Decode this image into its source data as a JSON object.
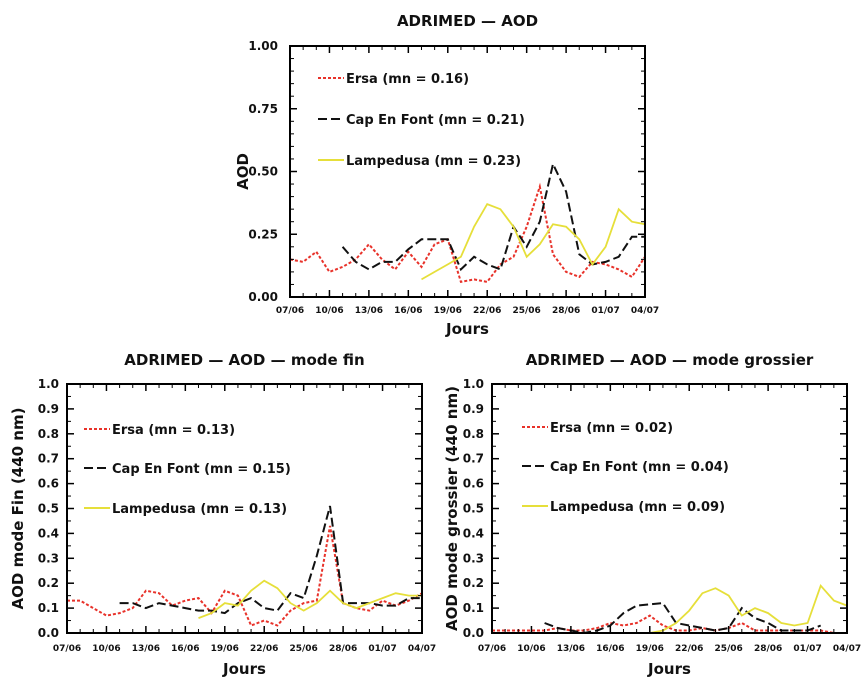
{
  "colors": {
    "ersa": "#e8322a",
    "cap": "#111111",
    "lampedusa": "#e6df3a"
  },
  "chart_data": [
    {
      "type": "line",
      "title": "ADRIMED — AOD",
      "xlabel": "Jours",
      "ylabel": "AOD",
      "ylim": [
        0,
        1
      ],
      "xlim": [
        0,
        27
      ],
      "yticks": [
        0,
        0.25,
        0.5,
        0.75,
        1
      ],
      "ytick_labels": [
        "0.00",
        "0.25",
        "0.50",
        "0.75",
        "1.00"
      ],
      "xtick_labels": [
        "07/06",
        "10/06",
        "13/06",
        "16/06",
        "19/06",
        "22/06",
        "25/06",
        "28/06",
        "01/07",
        "04/07"
      ],
      "legend": "top-left",
      "series": [
        {
          "name": "Ersa (mn = 0.16)",
          "color": "#e8322a",
          "style": "dotted",
          "x": [
            0,
            1,
            2,
            3,
            4,
            5,
            6,
            7,
            8,
            9,
            10,
            11,
            12,
            13,
            14,
            15,
            16,
            17,
            18,
            19,
            20,
            21,
            22,
            23,
            24,
            25,
            26,
            27
          ],
          "y": [
            0.15,
            0.14,
            0.18,
            0.1,
            0.12,
            0.15,
            0.21,
            0.15,
            0.11,
            0.18,
            0.12,
            0.21,
            0.23,
            0.06,
            0.07,
            0.06,
            0.13,
            0.16,
            0.28,
            0.44,
            0.17,
            0.1,
            0.08,
            0.14,
            0.13,
            0.11,
            0.08,
            0.16
          ]
        },
        {
          "name": "Cap En Font (mn = 0.21)",
          "color": "#111111",
          "style": "dashed",
          "x": [
            4,
            5,
            6,
            7,
            8,
            9,
            10,
            11,
            12,
            13,
            14,
            15,
            16,
            17,
            18,
            19,
            20,
            21,
            22,
            23,
            24,
            25,
            26,
            27
          ],
          "y": [
            0.2,
            0.14,
            0.11,
            0.14,
            0.14,
            0.19,
            0.23,
            0.23,
            0.23,
            0.11,
            0.16,
            0.13,
            0.11,
            0.28,
            0.2,
            0.3,
            0.53,
            0.42,
            0.17,
            0.13,
            0.14,
            0.16,
            0.24,
            0.24
          ]
        },
        {
          "name": "Lampedusa (mn = 0.23)",
          "color": "#e6df3a",
          "style": "solid",
          "x": [
            10,
            11,
            12,
            13,
            14,
            15,
            16,
            17,
            18,
            19,
            20,
            21,
            22,
            23,
            24,
            25,
            26,
            27
          ],
          "y": [
            0.07,
            0.1,
            0.13,
            0.16,
            0.28,
            0.37,
            0.35,
            0.28,
            0.16,
            0.21,
            0.29,
            0.28,
            0.23,
            0.13,
            0.2,
            0.35,
            0.3,
            0.29
          ]
        }
      ]
    },
    {
      "type": "line",
      "title": "ADRIMED — AOD — mode fin",
      "xlabel": "Jours",
      "ylabel": "AOD mode Fin (440 nm)",
      "ylim": [
        0,
        1
      ],
      "xlim": [
        0,
        27
      ],
      "yticks": [
        0,
        0.1,
        0.2,
        0.3,
        0.4,
        0.5,
        0.6,
        0.7,
        0.8,
        0.9,
        1.0
      ],
      "ytick_labels": [
        "0.0",
        "0.1",
        "0.2",
        "0.3",
        "0.4",
        "0.5",
        "0.6",
        "0.7",
        "0.8",
        "0.9",
        "1.0"
      ],
      "xtick_labels": [
        "07/06",
        "10/06",
        "13/06",
        "16/06",
        "19/06",
        "22/06",
        "25/06",
        "28/06",
        "01/07",
        "04/07"
      ],
      "legend": "top-left",
      "series": [
        {
          "name": "Ersa (mn = 0.13)",
          "color": "#e8322a",
          "style": "dotted",
          "x": [
            0,
            1,
            3,
            4,
            5,
            6,
            7,
            8,
            9,
            10,
            11,
            12,
            13,
            14,
            15,
            16,
            17,
            18,
            19,
            20,
            21,
            22,
            23,
            24,
            25,
            26,
            27
          ],
          "y": [
            0.13,
            0.13,
            0.07,
            0.08,
            0.1,
            0.17,
            0.16,
            0.11,
            0.13,
            0.14,
            0.08,
            0.17,
            0.15,
            0.03,
            0.05,
            0.03,
            0.09,
            0.12,
            0.13,
            0.43,
            0.12,
            0.1,
            0.09,
            0.13,
            0.11,
            0.13,
            0.16
          ]
        },
        {
          "name": "Cap En Font (mn = 0.15)",
          "color": "#111111",
          "style": "dashed",
          "x": [
            4,
            5,
            6,
            7,
            8,
            9,
            10,
            11,
            12,
            13,
            14,
            15,
            16,
            17,
            18,
            19,
            20,
            21,
            22,
            23,
            24,
            25,
            26,
            27
          ],
          "y": [
            0.12,
            0.12,
            0.1,
            0.12,
            0.11,
            0.1,
            0.09,
            0.09,
            0.08,
            0.12,
            0.14,
            0.1,
            0.09,
            0.16,
            0.14,
            0.31,
            0.51,
            0.12,
            0.12,
            0.12,
            0.11,
            0.11,
            0.14,
            0.14
          ]
        },
        {
          "name": "Lampedusa (mn = 0.13)",
          "color": "#e6df3a",
          "style": "solid",
          "x": [
            10,
            11,
            12,
            13,
            14,
            15,
            16,
            17,
            18,
            19,
            20,
            21,
            22,
            23,
            24,
            25,
            26,
            27
          ],
          "y": [
            0.06,
            0.08,
            0.12,
            0.11,
            0.17,
            0.21,
            0.18,
            0.12,
            0.09,
            0.12,
            0.17,
            0.12,
            0.1,
            0.12,
            0.14,
            0.16,
            0.15,
            0.15
          ]
        }
      ]
    },
    {
      "type": "line",
      "title": "ADRIMED — AOD — mode grossier",
      "xlabel": "Jours",
      "ylabel": "AOD mode grossier (440 nm)",
      "ylim": [
        0,
        1
      ],
      "xlim": [
        0,
        27
      ],
      "yticks": [
        0,
        0.1,
        0.2,
        0.3,
        0.4,
        0.5,
        0.6,
        0.7,
        0.8,
        0.9,
        1.0
      ],
      "ytick_labels": [
        "0.0",
        "0.1",
        "0.2",
        "0.3",
        "0.4",
        "0.5",
        "0.6",
        "0.7",
        "0.8",
        "0.9",
        "1.0"
      ],
      "xtick_labels": [
        "07/06",
        "10/06",
        "13/06",
        "16/06",
        "19/06",
        "22/06",
        "25/06",
        "28/06",
        "01/07",
        "04/07"
      ],
      "legend": "top-left",
      "series": [
        {
          "name": "Ersa (mn = 0.02)",
          "color": "#e8322a",
          "style": "dotted",
          "x": [
            0,
            1,
            3,
            4,
            5,
            6,
            7,
            8,
            9,
            10,
            11,
            12,
            13,
            14,
            15,
            16,
            17,
            18,
            19,
            20,
            21,
            22,
            23,
            24,
            25,
            26,
            27
          ],
          "y": [
            0.01,
            0.01,
            0.01,
            0.01,
            0.02,
            0.01,
            0.01,
            0.02,
            0.04,
            0.03,
            0.04,
            0.07,
            0.03,
            0.01,
            0.01,
            0.02,
            0.01,
            0.02,
            0.04,
            0.01,
            0.01,
            0.01,
            0.01,
            0.01,
            0.01,
            0.0,
            0.0
          ]
        },
        {
          "name": "Cap En Font (mn = 0.04)",
          "color": "#111111",
          "style": "dashed",
          "x": [
            4,
            5,
            6,
            7,
            8,
            9,
            10,
            11,
            13,
            14,
            15,
            16,
            17,
            18,
            19,
            20,
            21,
            22,
            23,
            24,
            25
          ],
          "y": [
            0.04,
            0.02,
            0.01,
            0.0,
            0.01,
            0.03,
            0.08,
            0.11,
            0.12,
            0.04,
            0.03,
            0.02,
            0.01,
            0.02,
            0.1,
            0.06,
            0.04,
            0.01,
            0.01,
            0.01,
            0.03
          ]
        },
        {
          "name": "Lampedusa (mn = 0.09)",
          "color": "#e6df3a",
          "style": "solid",
          "x": [
            10,
            11,
            12,
            13,
            14,
            15,
            16,
            17,
            18,
            19,
            20,
            21,
            22,
            23,
            24,
            25,
            26,
            27
          ],
          "y": [
            0.0,
            0.0,
            0.0,
            0.01,
            0.04,
            0.09,
            0.16,
            0.18,
            0.15,
            0.07,
            0.1,
            0.08,
            0.04,
            0.03,
            0.04,
            0.19,
            0.13,
            0.11
          ]
        }
      ]
    }
  ]
}
